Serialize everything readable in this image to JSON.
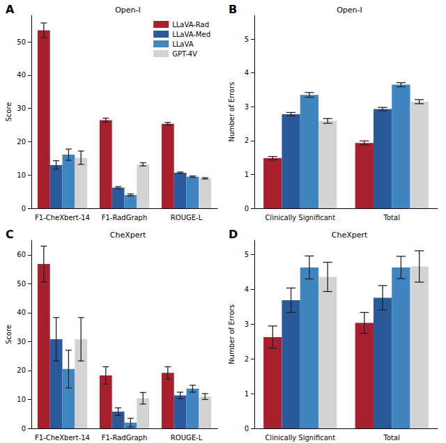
{
  "chart_data": [
    {
      "type": "bar",
      "annotation": "A",
      "title": "Open-I",
      "y_label": "Score",
      "categories": [
        "F1-CheXbert-14",
        "F1-RadGraph",
        "ROUGE-L"
      ],
      "ylim": [
        0,
        58
      ],
      "yticks": [
        0,
        10,
        20,
        30,
        40,
        50
      ],
      "grid": false,
      "legend": "upper right",
      "series": [
        {
          "name": "LLaVA-Rad",
          "color": "#a8202e",
          "values": [
            53.5,
            26.5,
            25.4
          ],
          "errors": [
            2.2,
            0.6,
            0.4
          ]
        },
        {
          "name": "LLaVA-Med",
          "color": "#2a5a9a",
          "values": [
            13.0,
            6.2,
            10.7
          ],
          "errors": [
            1.3,
            0.3,
            0.2
          ]
        },
        {
          "name": "LLaVA",
          "color": "#3f86c0",
          "values": [
            16.1,
            4.0,
            9.5
          ],
          "errors": [
            1.7,
            0.3,
            0.2
          ]
        },
        {
          "name": "GPT-4V",
          "color": "#d3d3d3",
          "values": [
            15.2,
            13.2,
            9.0
          ],
          "errors": [
            2.0,
            0.5,
            0.2
          ]
        }
      ]
    },
    {
      "type": "bar",
      "annotation": "B",
      "title": "Open-I",
      "y_label": "Number of Errors",
      "categories": [
        "Clinically Significant",
        "Total"
      ],
      "ylim": [
        0,
        5.7
      ],
      "yticks": [
        0,
        1,
        2,
        3,
        4,
        5
      ],
      "grid": false,
      "series": [
        {
          "color": "#a8202e",
          "values": [
            1.48,
            1.93
          ],
          "errors": [
            0.05,
            0.06
          ]
        },
        {
          "color": "#2a5a9a",
          "values": [
            2.78,
            2.93
          ],
          "errors": [
            0.05,
            0.05
          ]
        },
        {
          "color": "#3f86c0",
          "values": [
            3.35,
            3.65
          ],
          "errors": [
            0.07,
            0.06
          ]
        },
        {
          "color": "#d3d3d3",
          "values": [
            2.58,
            3.15
          ],
          "errors": [
            0.07,
            0.06
          ]
        }
      ]
    },
    {
      "type": "bar",
      "annotation": "C",
      "title": "CheXpert",
      "y_label": "Score",
      "categories": [
        "F1-CheXbert-14",
        "F1-RadGraph",
        "ROUGE-L"
      ],
      "ylim": [
        0,
        65
      ],
      "yticks": [
        0,
        10,
        20,
        30,
        40,
        50,
        60
      ],
      "grid": false,
      "series": [
        {
          "color": "#a8202e",
          "values": [
            56.8,
            18.3,
            19.2
          ],
          "errors": [
            6.2,
            3.0,
            2.1
          ]
        },
        {
          "color": "#2a5a9a",
          "values": [
            30.8,
            5.8,
            11.4
          ],
          "errors": [
            7.5,
            1.3,
            1.1
          ]
        },
        {
          "color": "#3f86c0",
          "values": [
            20.5,
            2.0,
            13.7
          ],
          "errors": [
            6.5,
            1.5,
            1.2
          ]
        },
        {
          "color": "#d3d3d3",
          "values": [
            30.8,
            10.4,
            11.0
          ],
          "errors": [
            7.5,
            2.0,
            1.0
          ]
        }
      ]
    },
    {
      "type": "bar",
      "annotation": "D",
      "title": "CheXpert",
      "y_label": "Number of Errors",
      "categories": [
        "Clinically Significant",
        "Total"
      ],
      "ylim": [
        0,
        5.4
      ],
      "yticks": [
        0,
        1,
        2,
        3,
        4,
        5
      ],
      "grid": false,
      "series": [
        {
          "color": "#a8202e",
          "values": [
            2.62,
            3.03
          ],
          "errors": [
            0.32,
            0.3
          ]
        },
        {
          "color": "#2a5a9a",
          "values": [
            3.68,
            3.75
          ],
          "errors": [
            0.35,
            0.35
          ]
        },
        {
          "color": "#3f86c0",
          "values": [
            4.62,
            4.62
          ],
          "errors": [
            0.33,
            0.32
          ]
        },
        {
          "color": "#d3d3d3",
          "values": [
            4.35,
            4.65
          ],
          "errors": [
            0.42,
            0.45
          ]
        }
      ]
    }
  ]
}
